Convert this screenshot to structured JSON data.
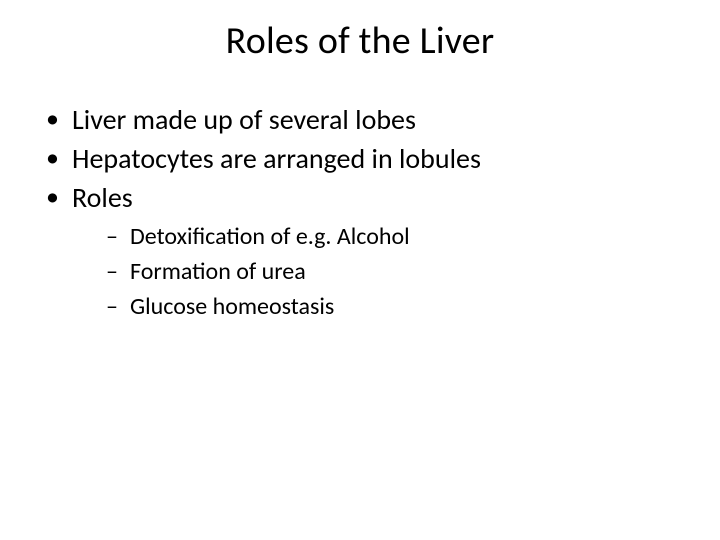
{
  "background_color": "#ffffff",
  "text_color": "#000000",
  "font_family": "Calibri",
  "title": {
    "text": "Roles of the Liver",
    "fontsize": 38,
    "weight": 400,
    "align": "center"
  },
  "bullets": {
    "level1_fontsize": 28,
    "level2_fontsize": 24,
    "level1_marker": "•",
    "level2_marker": "–",
    "items": [
      {
        "text": "Liver made up of several lobes"
      },
      {
        "text": "Hepatocytes are arranged in lobules"
      },
      {
        "text": "Roles",
        "children": [
          {
            "text": "Detoxification of e.g. Alcohol"
          },
          {
            "text": "Formation of urea"
          },
          {
            "text": "Glucose homeostasis"
          }
        ]
      }
    ]
  }
}
